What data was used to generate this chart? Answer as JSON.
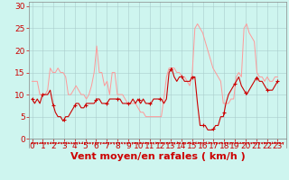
{
  "title": "",
  "xlabel": "Vent moyen/en rafales ( km/h )",
  "bg_color": "#cef5ef",
  "grid_color": "#aacccc",
  "y_ticks": [
    0,
    5,
    10,
    15,
    20,
    25,
    30
  ],
  "x_ticks": [
    0,
    1,
    2,
    3,
    4,
    5,
    6,
    7,
    8,
    9,
    10,
    11,
    12,
    13,
    14,
    15,
    16,
    17,
    18,
    19,
    20,
    21,
    22,
    23
  ],
  "ylim": [
    -2,
    31
  ],
  "xlim": [
    -0.3,
    23.8
  ],
  "line_gust_color": "#ff9999",
  "line_avg_color": "#cc0000",
  "marker_color": "#cc0000",
  "xlabel_color": "#cc0000",
  "xlabel_fontsize": 8,
  "tick_color": "#cc0000",
  "tick_fontsize": 6.5,
  "avg": [
    9,
    8,
    9,
    8,
    10,
    10,
    10,
    11,
    8,
    6,
    5,
    5,
    4,
    5,
    5,
    6,
    7,
    8,
    8,
    7,
    7,
    8,
    8,
    8,
    8,
    9,
    9,
    8,
    8,
    8,
    9,
    9,
    9,
    9,
    9,
    8,
    8,
    8,
    8,
    9,
    8,
    9,
    8,
    9,
    8,
    8,
    8,
    9,
    9,
    9,
    9,
    8,
    9,
    15,
    16,
    14,
    13,
    14,
    14,
    13,
    13,
    13,
    14,
    14,
    8,
    3,
    3,
    3,
    2,
    2,
    2,
    3,
    3,
    5,
    5,
    8,
    10,
    11,
    12,
    13,
    14,
    12,
    11,
    10,
    11,
    12,
    13,
    14,
    13,
    13,
    12,
    11,
    11,
    11,
    12,
    13
  ],
  "gust": [
    13,
    13,
    13,
    10,
    10,
    10,
    11,
    16,
    15,
    15,
    16,
    15,
    15,
    14,
    10,
    10,
    11,
    12,
    11,
    10,
    10,
    9,
    10,
    12,
    15,
    21,
    15,
    15,
    12,
    13,
    10,
    15,
    15,
    10,
    10,
    10,
    9,
    8,
    8,
    8,
    8,
    7,
    6,
    6,
    5,
    5,
    5,
    5,
    5,
    5,
    5,
    9,
    14,
    16,
    16,
    16,
    15,
    15,
    14,
    14,
    13,
    12,
    15,
    25,
    26,
    25,
    24,
    22,
    20,
    18,
    16,
    15,
    14,
    13,
    8,
    8,
    8,
    9,
    9,
    14,
    15,
    14,
    25,
    26,
    24,
    23,
    22,
    15,
    14,
    14,
    13,
    14,
    13,
    13,
    14,
    14
  ]
}
